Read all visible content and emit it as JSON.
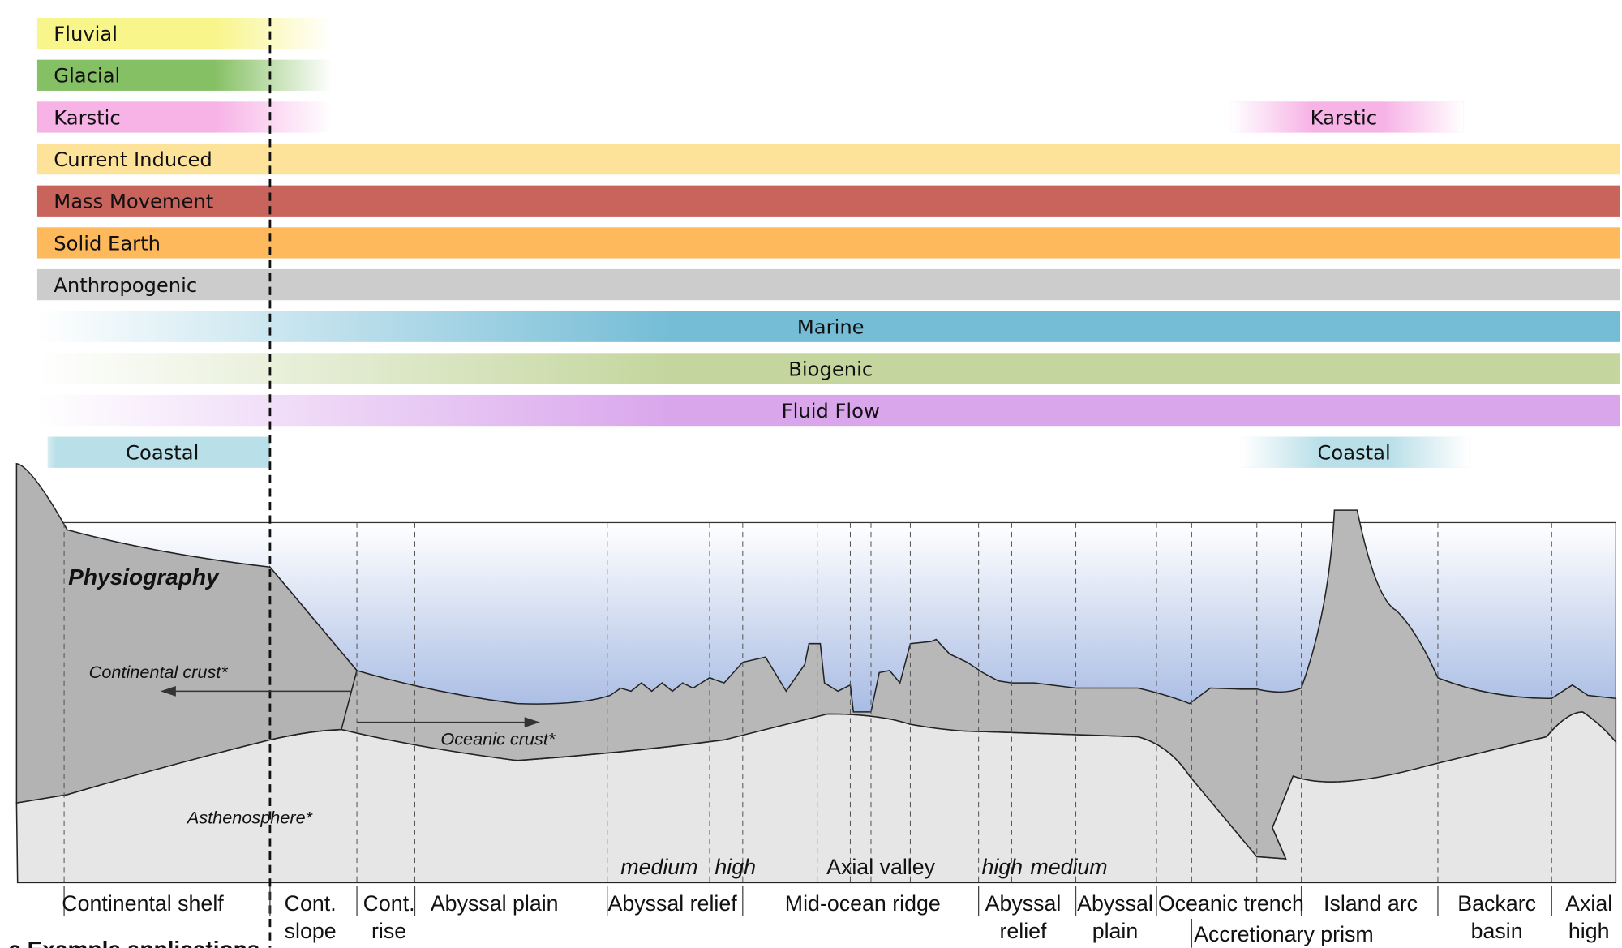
{
  "process_bars": [
    {
      "label": "Fluvial",
      "color": "#f8f58a",
      "extent": "land"
    },
    {
      "label": "Glacial",
      "color": "#86c064",
      "extent": "land"
    },
    {
      "label": "Karstic",
      "color": "#f7b2e6",
      "extent": "land"
    },
    {
      "label": "Current Induced",
      "color": "#fde29a",
      "extent": "full"
    },
    {
      "label": "Mass Movement",
      "color": "#c9645d",
      "extent": "full"
    },
    {
      "label": "Solid Earth",
      "color": "#fdb95c",
      "extent": "full"
    },
    {
      "label": "Anthropogenic",
      "color": "#cccccc",
      "extent": "full"
    },
    {
      "label": "Marine",
      "color": "#75bdd6",
      "extent": "fade"
    },
    {
      "label": "Biogenic",
      "color": "#c4d69e",
      "extent": "fade"
    },
    {
      "label": "Fluid Flow",
      "color": "#d9a6ec",
      "extent": "fade"
    }
  ],
  "karstic_right": {
    "label": "Karstic",
    "color": "#f7b2e6"
  },
  "coastal": {
    "left": "Coastal",
    "right": "Coastal",
    "color": "#b9dfe8"
  },
  "physiography": {
    "title": "Physiography",
    "continental_crust": "Continental crust*",
    "oceanic_crust": "Oceanic crust*",
    "asthenosphere": "Asthenosphere*",
    "relief_labels": [
      "medium",
      "high",
      "Axial valley",
      "high",
      "medium"
    ]
  },
  "zones": [
    {
      "l1": "Continental shelf",
      "l2": ""
    },
    {
      "l1": "Cont.",
      "l2": "slope"
    },
    {
      "l1": "Cont.",
      "l2": "rise"
    },
    {
      "l1": "Abyssal plain",
      "l2": ""
    },
    {
      "l1": "Abyssal relief",
      "l2": ""
    },
    {
      "l1": "Mid-ocean ridge",
      "l2": ""
    },
    {
      "l1": "Abyssal",
      "l2": "relief"
    },
    {
      "l1": "Abyssal",
      "l2": "plain"
    },
    {
      "l1": "Oceanic trench",
      "l2": ""
    },
    {
      "l1": "Accretionary prism",
      "l2": ""
    },
    {
      "l1": "Island arc",
      "l2": ""
    },
    {
      "l1": "Backarc",
      "l2": "basin"
    },
    {
      "l1": "Axial",
      "l2": "high"
    }
  ],
  "footer_heading": "c  Example applications"
}
